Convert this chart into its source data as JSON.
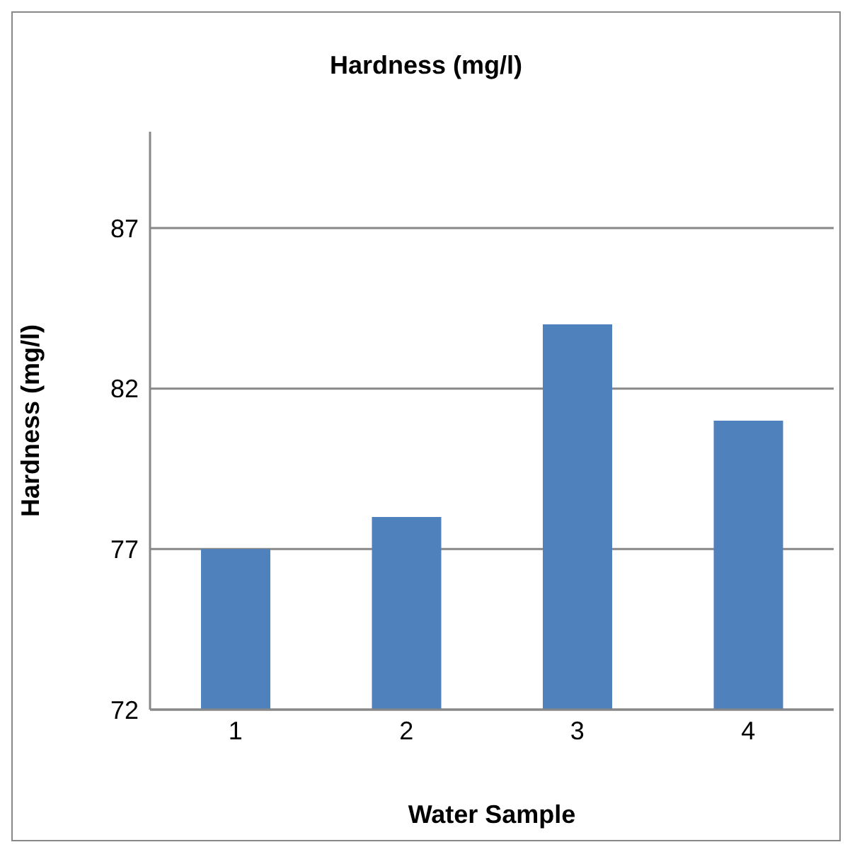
{
  "chart_data": {
    "type": "bar",
    "title": "Hardness (mg/l)",
    "xlabel": "Water Sample",
    "ylabel": "Hardness (mg/l)",
    "categories": [
      "1",
      "2",
      "3",
      "4"
    ],
    "values": [
      77,
      78,
      84,
      81
    ],
    "color": "#4f81bd",
    "ylim": [
      72,
      90
    ],
    "yticks": [
      72,
      77,
      82,
      87
    ],
    "grid": "y"
  }
}
